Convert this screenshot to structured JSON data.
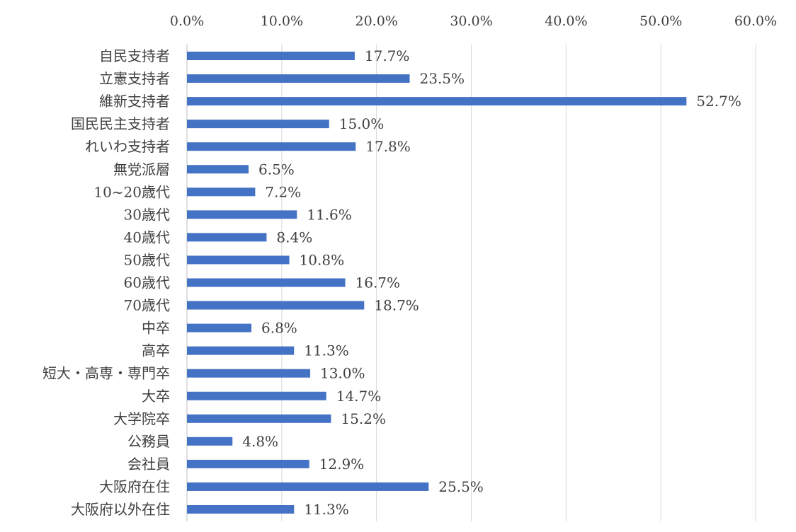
{
  "chart_data": {
    "type": "bar",
    "orientation": "horizontal",
    "title": "",
    "xlabel": "",
    "ylabel": "",
    "xlim": [
      0,
      60
    ],
    "x_ticks": [
      "0.0%",
      "10.0%",
      "20.0%",
      "30.0%",
      "40.0%",
      "50.0%",
      "60.0%"
    ],
    "x_tick_values": [
      0,
      10,
      20,
      30,
      40,
      50,
      60
    ],
    "grid": true,
    "axis_position": "top",
    "bar_color": "#4472C4",
    "categories": [
      "自民支持者",
      "立憲支持者",
      "維新支持者",
      "国民民主支持者",
      "れいわ支持者",
      "無党派層",
      "10~20歳代",
      "30歳代",
      "40歳代",
      "50歳代",
      "60歳代",
      "70歳代",
      "中卒",
      "高卒",
      "短大・高専・専門卒",
      "大卒",
      "大学院卒",
      "公務員",
      "会社員",
      "大阪府在住",
      "大阪府以外在住"
    ],
    "values": [
      17.7,
      23.5,
      52.7,
      15.0,
      17.8,
      6.5,
      7.2,
      11.6,
      8.4,
      10.8,
      16.7,
      18.7,
      6.8,
      11.3,
      13.0,
      14.7,
      15.2,
      4.8,
      12.9,
      25.5,
      11.3
    ],
    "data_labels": [
      "17.7%",
      "23.5%",
      "52.7%",
      "15.0%",
      "17.8%",
      "6.5%",
      "7.2%",
      "11.6%",
      "8.4%",
      "10.8%",
      "16.7%",
      "18.7%",
      "6.8%",
      "11.3%",
      "13.0%",
      "14.7%",
      "15.2%",
      "4.8%",
      "12.9%",
      "25.5%",
      "11.3%"
    ]
  }
}
